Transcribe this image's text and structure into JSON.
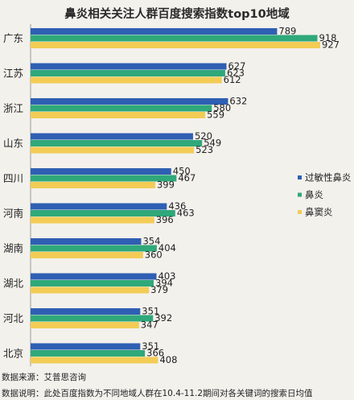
{
  "chart_data": {
    "type": "bar",
    "orientation": "horizontal",
    "title": "鼻炎相关关注人群百度搜索指数top10地域",
    "categories": [
      "广东",
      "江苏",
      "浙江",
      "山东",
      "四川",
      "河南",
      "湖南",
      "湖北",
      "河北",
      "北京"
    ],
    "series": [
      {
        "name": "过敏性鼻炎",
        "color": "#2f5fb3",
        "values": [
          789,
          627,
          632,
          520,
          450,
          436,
          354,
          403,
          351,
          351
        ]
      },
      {
        "name": "鼻炎",
        "color": "#2fa87a",
        "values": [
          918,
          623,
          580,
          549,
          467,
          463,
          404,
          394,
          392,
          366
        ]
      },
      {
        "name": "鼻窦炎",
        "color": "#f2cc55",
        "values": [
          927,
          612,
          559,
          523,
          399,
          396,
          360,
          379,
          347,
          408
        ]
      }
    ],
    "xlim": [
      0,
      927
    ],
    "grid": false,
    "legend_position": "right"
  },
  "footer": {
    "source": "数据来源：艾普思咨询",
    "note": "数据说明：此处百度指数为不同地域人群在10.4-11.2期间对各关键词的搜索日均值"
  }
}
